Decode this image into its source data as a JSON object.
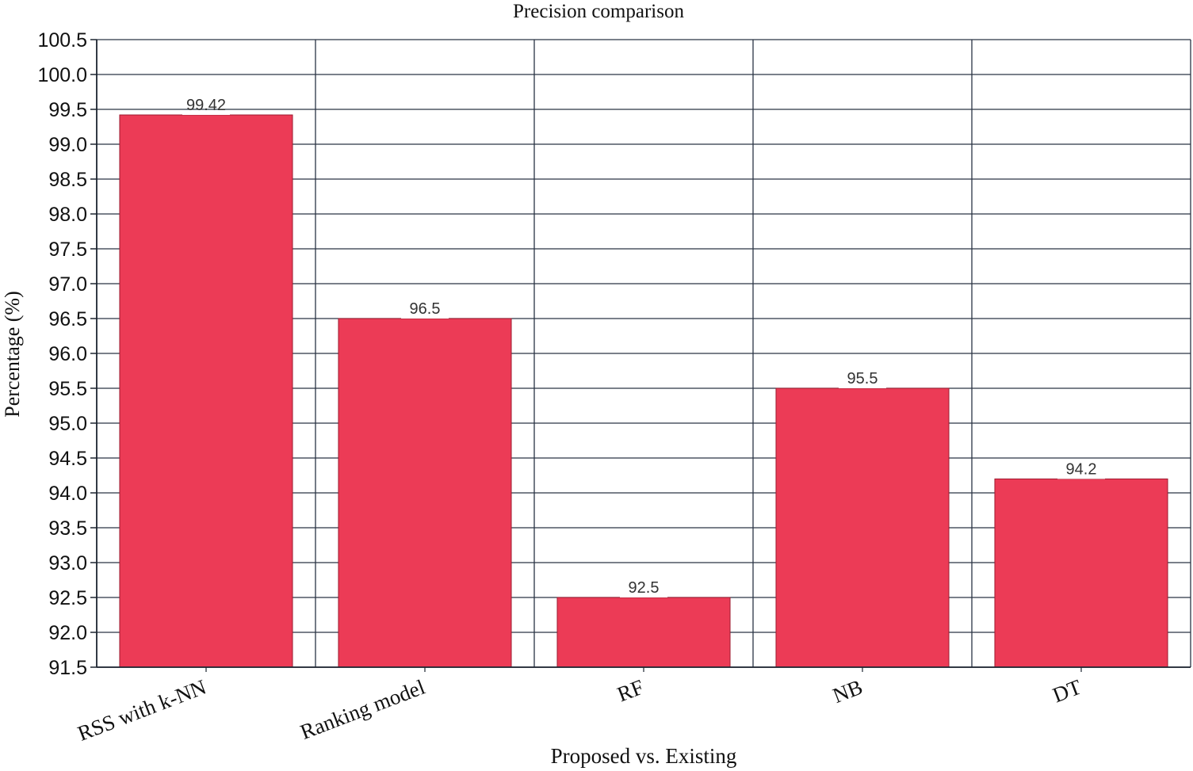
{
  "chart_data": {
    "type": "bar",
    "title": "Precision comparison",
    "xlabel": "Proposed vs. Existing",
    "ylabel": "Percentage (%)",
    "categories": [
      "RSS with k-NN",
      "Ranking model",
      "RF",
      "NB",
      "DT"
    ],
    "values": [
      99.42,
      96.5,
      92.5,
      95.5,
      94.2
    ],
    "value_labels": [
      "99.42",
      "96.5",
      "92.5",
      "95.5",
      "94.2"
    ],
    "ylim": [
      91.5,
      100.5
    ],
    "yticks": [
      "91.5",
      "92.0",
      "92.5",
      "93.0",
      "93.5",
      "94.0",
      "94.5",
      "95.0",
      "95.5",
      "96.0",
      "96.5",
      "97.0",
      "97.5",
      "98.0",
      "98.5",
      "99.0",
      "99.5",
      "100.0",
      "100.5"
    ],
    "grid": true,
    "legend": "none",
    "colors": {
      "bar": "#ec3b56",
      "bar_edge": "#9e1c30",
      "grid": "#2a3444",
      "axis": "#1c2430",
      "text": "#111111"
    }
  }
}
